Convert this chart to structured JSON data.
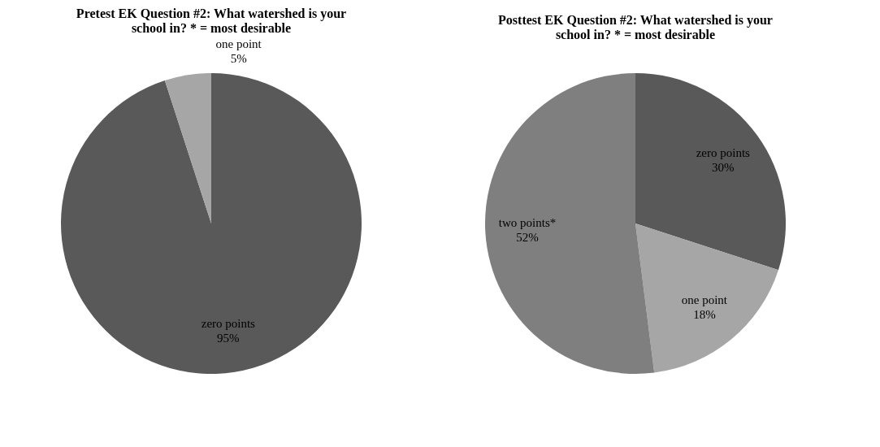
{
  "chart_data": [
    {
      "type": "pie",
      "title": "Pretest EK Question #2: What watershed is your school in? * = most desirable",
      "categories": [
        "zero points",
        "one point"
      ],
      "values": [
        95,
        5
      ],
      "value_labels": [
        "95%",
        "5%"
      ],
      "colors": [
        "#595959",
        "#a6a6a6"
      ]
    },
    {
      "type": "pie",
      "title": "Posttest EK Question #2: What watershed is your school in? * = most desirable",
      "categories": [
        "zero points",
        "one point",
        "two points*"
      ],
      "values": [
        30,
        18,
        52
      ],
      "value_labels": [
        "30%",
        "18%",
        "52%"
      ],
      "colors": [
        "#595959",
        "#a6a6a6",
        "#7f7f7f"
      ]
    }
  ]
}
